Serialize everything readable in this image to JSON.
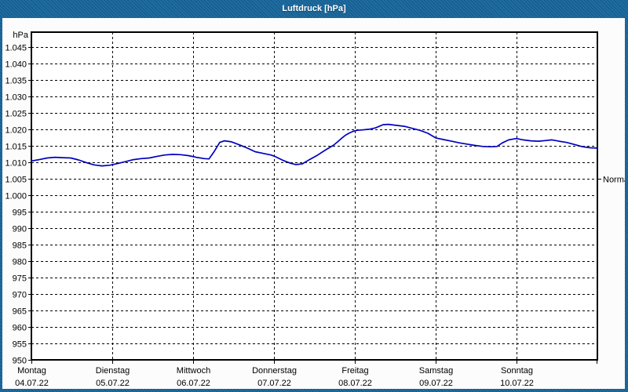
{
  "window": {
    "title": "Luftdruck [hPa]"
  },
  "colors": {
    "frame": "#1e6da3",
    "title_text": "#ffffff",
    "content_bg": "#fcfcfc",
    "plot_bg": "#ffffff",
    "axis": "#000000",
    "grid": "#000000",
    "label": "#000000",
    "curve": "#0000bf"
  },
  "chart_data": {
    "type": "line",
    "title": "Luftdruck [hPa]",
    "unit_label": "hPa",
    "ylabel": "hPa",
    "ylim": [
      950,
      1049.5
    ],
    "ytick_step": 5,
    "grid": "dashed",
    "legend_position": "none",
    "yticks": [
      {
        "value": 1045,
        "label": "1.045"
      },
      {
        "value": 1040,
        "label": "1.040"
      },
      {
        "value": 1035,
        "label": "1.035"
      },
      {
        "value": 1030,
        "label": "1.030"
      },
      {
        "value": 1025,
        "label": "1.025"
      },
      {
        "value": 1020,
        "label": "1.020"
      },
      {
        "value": 1015,
        "label": "1.015"
      },
      {
        "value": 1010,
        "label": "1.010"
      },
      {
        "value": 1005,
        "label": "1.005"
      },
      {
        "value": 1000,
        "label": "1.000"
      },
      {
        "value": 995,
        "label": "995"
      },
      {
        "value": 990,
        "label": "990"
      },
      {
        "value": 985,
        "label": "985"
      },
      {
        "value": 980,
        "label": "980"
      },
      {
        "value": 975,
        "label": "975"
      },
      {
        "value": 970,
        "label": "970"
      },
      {
        "value": 965,
        "label": "965"
      },
      {
        "value": 960,
        "label": "960"
      },
      {
        "value": 955,
        "label": "955"
      },
      {
        "value": 950,
        "label": "950"
      }
    ],
    "x_axis": {
      "hours_total": 168,
      "days": [
        {
          "name": "Montag",
          "date": "04.07.22"
        },
        {
          "name": "Dienstag",
          "date": "05.07.22"
        },
        {
          "name": "Mittwoch",
          "date": "06.07.22"
        },
        {
          "name": "Donnerstag",
          "date": "07.07.22"
        },
        {
          "name": "Freitag",
          "date": "08.07.22"
        },
        {
          "name": "Samstag",
          "date": "09.07.22"
        },
        {
          "name": "Sonntag",
          "date": "10.07.22"
        }
      ]
    },
    "normal_marker": {
      "label": "Normal",
      "value": 1005
    },
    "series": [
      {
        "name": "Luftdruck",
        "color": "#0000bf",
        "points_hours_hpa": [
          [
            0,
            1010.4
          ],
          [
            2.3,
            1010.8
          ],
          [
            4.7,
            1011.3
          ],
          [
            7,
            1011.5
          ],
          [
            9.3,
            1011.4
          ],
          [
            11.7,
            1011.3
          ],
          [
            14,
            1010.7
          ],
          [
            16.3,
            1009.9
          ],
          [
            18.6,
            1009.2
          ],
          [
            21,
            1008.9
          ],
          [
            23.3,
            1009.1
          ],
          [
            25.6,
            1009.6
          ],
          [
            28,
            1010.2
          ],
          [
            30.3,
            1010.8
          ],
          [
            32.6,
            1011.1
          ],
          [
            35,
            1011.3
          ],
          [
            37.3,
            1011.8
          ],
          [
            39.6,
            1012.2
          ],
          [
            42,
            1012.4
          ],
          [
            44.3,
            1012.3
          ],
          [
            46.6,
            1012.0
          ],
          [
            48.9,
            1011.5
          ],
          [
            51.3,
            1011.1
          ],
          [
            52.7,
            1011.0
          ],
          [
            54.1,
            1013.0
          ],
          [
            55.9,
            1016.0
          ],
          [
            57.3,
            1016.5
          ],
          [
            59.4,
            1016.2
          ],
          [
            61.7,
            1015.3
          ],
          [
            64.1,
            1014.3
          ],
          [
            66.4,
            1013.2
          ],
          [
            68.7,
            1012.7
          ],
          [
            71.1,
            1012.2
          ],
          [
            72.2,
            1011.8
          ],
          [
            74.6,
            1010.6
          ],
          [
            76.9,
            1009.7
          ],
          [
            78.5,
            1009.3
          ],
          [
            80.4,
            1009.5
          ],
          [
            82.7,
            1010.9
          ],
          [
            85,
            1012.2
          ],
          [
            87.4,
            1013.8
          ],
          [
            89.7,
            1015.2
          ],
          [
            90.9,
            1016.2
          ],
          [
            92,
            1017.2
          ],
          [
            93.2,
            1018.2
          ],
          [
            94.4,
            1018.9
          ],
          [
            95.5,
            1019.4
          ],
          [
            96.7,
            1019.7
          ],
          [
            97.9,
            1019.8
          ],
          [
            100.2,
            1020.0
          ],
          [
            102.1,
            1020.4
          ],
          [
            104.4,
            1021.4
          ],
          [
            106,
            1021.5
          ],
          [
            108.3,
            1021.2
          ],
          [
            110.7,
            1020.9
          ],
          [
            113,
            1020.3
          ],
          [
            115.3,
            1019.7
          ],
          [
            117.7,
            1018.8
          ],
          [
            120,
            1017.4
          ],
          [
            122.3,
            1016.9
          ],
          [
            124.7,
            1016.4
          ],
          [
            127,
            1015.9
          ],
          [
            129.3,
            1015.5
          ],
          [
            131.7,
            1015.1
          ],
          [
            134,
            1014.8
          ],
          [
            136.3,
            1014.7
          ],
          [
            138.2,
            1014.8
          ],
          [
            139.8,
            1015.9
          ],
          [
            141.7,
            1016.8
          ],
          [
            144,
            1017.2
          ],
          [
            145.9,
            1016.8
          ],
          [
            148.2,
            1016.5
          ],
          [
            150.5,
            1016.4
          ],
          [
            152.8,
            1016.6
          ],
          [
            154.5,
            1016.8
          ],
          [
            156.6,
            1016.4
          ],
          [
            158.9,
            1016.0
          ],
          [
            161.2,
            1015.4
          ],
          [
            163.6,
            1014.7
          ],
          [
            165.9,
            1014.4
          ],
          [
            168,
            1014.3
          ]
        ]
      }
    ]
  }
}
